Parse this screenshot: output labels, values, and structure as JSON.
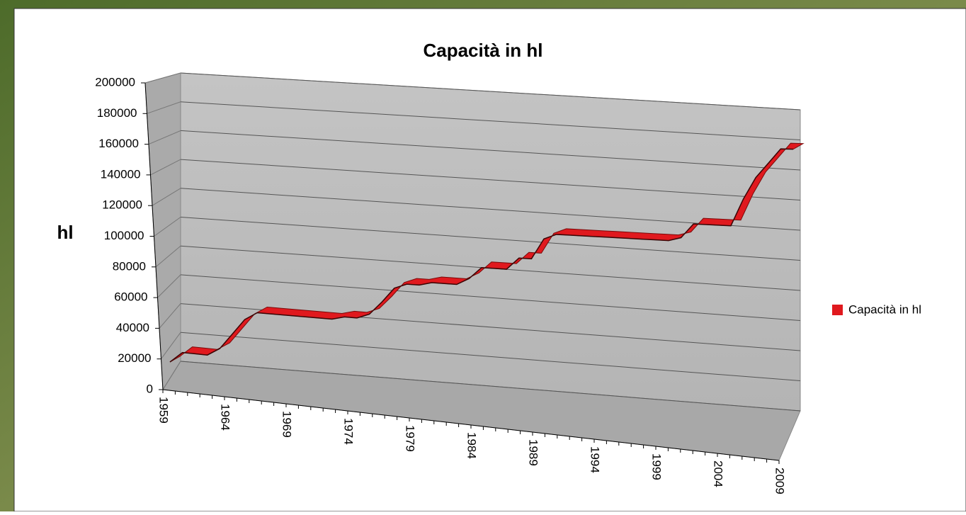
{
  "chart_data": {
    "type": "line3d",
    "title": "Capacità in hl",
    "y_label": "hl",
    "categories": [
      "1959",
      null,
      null,
      null,
      null,
      "1964",
      null,
      null,
      null,
      null,
      "1969",
      null,
      null,
      null,
      null,
      "1974",
      null,
      null,
      null,
      null,
      "1979",
      null,
      null,
      null,
      null,
      "1984",
      null,
      null,
      null,
      null,
      "1989",
      null,
      null,
      null,
      null,
      "1994",
      null,
      null,
      null,
      null,
      "1999",
      null,
      null,
      null,
      null,
      "2004",
      null,
      null,
      null,
      null,
      "2009"
    ],
    "series": [
      {
        "name": "Capacità in hl",
        "color": "#e0191e",
        "values": [
          18000,
          25000,
          25000,
          25000,
          30000,
          40000,
          50000,
          55000,
          55000,
          55000,
          55000,
          55000,
          55000,
          55000,
          57000,
          57000,
          60000,
          68000,
          77000,
          80000,
          80000,
          82000,
          82000,
          82000,
          86000,
          93000,
          93000,
          93000,
          100000,
          100000,
          112000,
          115000,
          115000,
          115000,
          115000,
          115000,
          115000,
          115000,
          115000,
          115000,
          115000,
          117000,
          125000,
          125000,
          125000,
          125000,
          140000,
          152000,
          160000,
          168000,
          168000
        ]
      }
    ],
    "ylim": [
      0,
      200000
    ],
    "yticks": [
      0,
      20000,
      40000,
      60000,
      80000,
      100000,
      120000,
      140000,
      160000,
      180000,
      200000
    ],
    "grid": true,
    "legend": "right"
  }
}
